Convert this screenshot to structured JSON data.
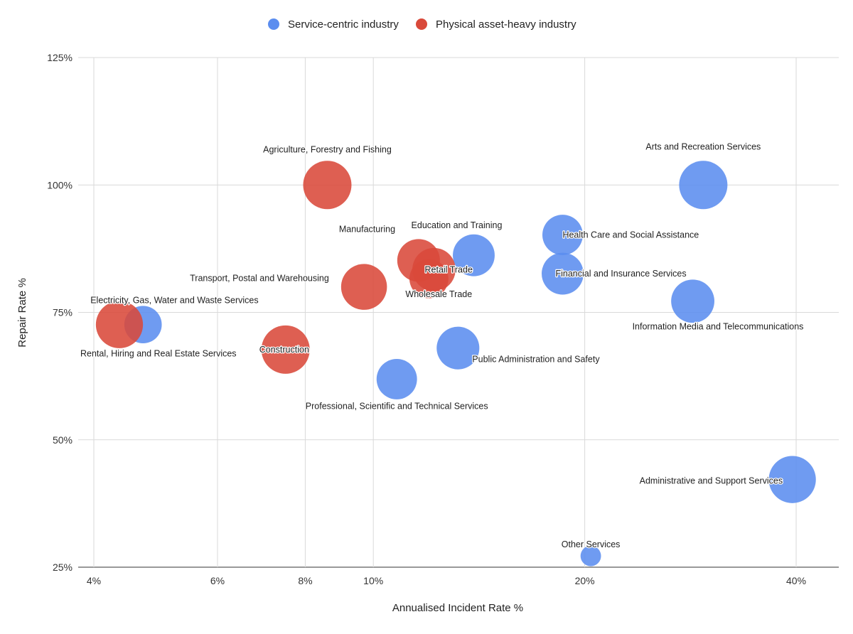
{
  "chart_data": {
    "type": "bubble",
    "title": "",
    "xlabel": "Annualised Incident Rate %",
    "ylabel": "Repair Rate %",
    "x_scale": "log",
    "xlim": [
      3.8,
      46
    ],
    "ylim": [
      25,
      125
    ],
    "x_ticks": [
      4,
      6,
      8,
      10,
      20,
      40
    ],
    "x_tick_labels": [
      "4%",
      "6%",
      "8%",
      "10%",
      "20%",
      "40%"
    ],
    "y_ticks": [
      25,
      50,
      75,
      100,
      125
    ],
    "y_tick_labels": [
      "25%",
      "50%",
      "75%",
      "100%",
      "125%"
    ],
    "legend_position": "top",
    "series": [
      {
        "name": "Service-centric industry",
        "color": "#5b8def",
        "points": [
          {
            "label": "Arts and Recreation Services",
            "x": 29.5,
            "y": 100,
            "size": 1.0
          },
          {
            "label": "Health Care and Social Assistance",
            "x": 18.6,
            "y": 90.2,
            "size": 0.7
          },
          {
            "label": "Education and Training",
            "x": 13.9,
            "y": 86.2,
            "size": 0.75
          },
          {
            "label": "Financial and Insurance Services",
            "x": 18.6,
            "y": 82.6,
            "size": 0.75
          },
          {
            "label": "Information Media and Telecommunications",
            "x": 28.5,
            "y": 77.2,
            "size": 0.8
          },
          {
            "label": "Electricity, Gas, Water and Waste Services",
            "x": 4.7,
            "y": 72.6,
            "size": 0.6
          },
          {
            "label": "Public Administration and Safety",
            "x": 13.2,
            "y": 68.0,
            "size": 0.78
          },
          {
            "label": "Professional, Scientific and Technical Services",
            "x": 10.8,
            "y": 61.9,
            "size": 0.7
          },
          {
            "label": "Administrative and Support Services",
            "x": 39.5,
            "y": 42.2,
            "size": 0.95
          },
          {
            "label": "Other Services",
            "x": 20.4,
            "y": 27.2,
            "size": 0.18
          }
        ]
      },
      {
        "name": "Physical asset-heavy industry",
        "color": "#d9493a",
        "points": [
          {
            "label": "Agriculture, Forestry and Fishing",
            "x": 8.6,
            "y": 100,
            "size": 1.0
          },
          {
            "label": "Manufacturing",
            "x": 11.6,
            "y": 85.2,
            "size": 0.78
          },
          {
            "label": "Retail Trade",
            "x": 12.2,
            "y": 83.4,
            "size": 0.8
          },
          {
            "label": "Wholesale Trade",
            "x": 12.0,
            "y": 81.6,
            "size": 0.65
          },
          {
            "label": "Transport, Postal and Warehousing",
            "x": 9.7,
            "y": 80.0,
            "size": 0.9
          },
          {
            "label": "Rental, Hiring and Real Estate Services",
            "x": 4.35,
            "y": 72.6,
            "size": 0.95
          },
          {
            "label": "Construction",
            "x": 7.5,
            "y": 67.7,
            "size": 1.0
          }
        ]
      }
    ]
  }
}
